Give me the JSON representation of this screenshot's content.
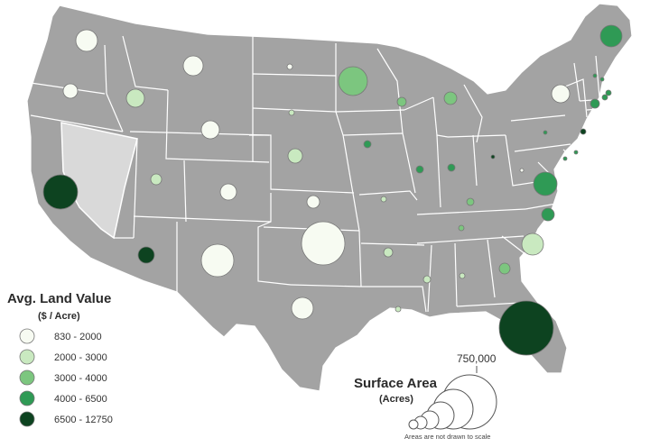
{
  "colors": {
    "land": "#a3a3a3",
    "border": "#ffffff",
    "highlight_state": "#d9d9d9",
    "bubble_stroke": "#777777",
    "class_colors": [
      "#f7fbf2",
      "#c9e9c0",
      "#7cc67f",
      "#2f9a55",
      "#0d4320"
    ]
  },
  "legend_color": {
    "title": "Avg. Land Value",
    "subtitle": "($ / Acre)",
    "classes": [
      {
        "label": "830 - 2000"
      },
      {
        "label": "2000 - 3000"
      },
      {
        "label": "3000 - 4000"
      },
      {
        "label": "4000 - 6500"
      },
      {
        "label": "6500 - 12750"
      }
    ]
  },
  "legend_size": {
    "title": "Surface Area",
    "subtitle": "(Acres)",
    "max_label": "750,000",
    "note": "Areas are not drawn to scale"
  },
  "highlighted_state": "NV",
  "bubbles": [
    {
      "state": "WA",
      "c": 0
    },
    {
      "state": "OR",
      "c": 0
    },
    {
      "state": "CA",
      "c": 4
    },
    {
      "state": "ID",
      "c": 1
    },
    {
      "state": "MT",
      "c": 0
    },
    {
      "state": "WY",
      "c": 0
    },
    {
      "state": "UT",
      "c": 1
    },
    {
      "state": "CO",
      "c": 0
    },
    {
      "state": "AZ",
      "c": 4
    },
    {
      "state": "NM",
      "c": 0
    },
    {
      "state": "ND",
      "c": 0
    },
    {
      "state": "SD",
      "c": 1
    },
    {
      "state": "NE",
      "c": 1
    },
    {
      "state": "KS",
      "c": 0
    },
    {
      "state": "OK",
      "c": 0
    },
    {
      "state": "TX",
      "c": 0
    },
    {
      "state": "MN",
      "c": 2
    },
    {
      "state": "IA",
      "c": 3
    },
    {
      "state": "MO",
      "c": 1
    },
    {
      "state": "AR",
      "c": 1
    },
    {
      "state": "LA",
      "c": 1
    },
    {
      "state": "WI",
      "c": 2
    },
    {
      "state": "IL",
      "c": 3
    },
    {
      "state": "MI",
      "c": 2
    },
    {
      "state": "IN",
      "c": 3
    },
    {
      "state": "OH",
      "c": 4
    },
    {
      "state": "KY",
      "c": 2
    },
    {
      "state": "TN",
      "c": 2
    },
    {
      "state": "MS",
      "c": 1
    },
    {
      "state": "AL",
      "c": 1
    },
    {
      "state": "GA",
      "c": 2
    },
    {
      "state": "FL",
      "c": 4
    },
    {
      "state": "SC",
      "c": 1
    },
    {
      "state": "NC",
      "c": 3
    },
    {
      "state": "VA",
      "c": 3
    },
    {
      "state": "WV",
      "c": 0
    },
    {
      "state": "PA",
      "c": 3
    },
    {
      "state": "MD",
      "c": 4
    },
    {
      "state": "DE",
      "c": 3
    },
    {
      "state": "NJ",
      "c": 3
    },
    {
      "state": "NY",
      "c": 0
    },
    {
      "state": "CT",
      "c": 3
    },
    {
      "state": "RI",
      "c": 3
    },
    {
      "state": "MA",
      "c": 3
    },
    {
      "state": "VT",
      "c": 3
    },
    {
      "state": "NH",
      "c": 3
    },
    {
      "state": "ME",
      "c": 3
    }
  ]
}
